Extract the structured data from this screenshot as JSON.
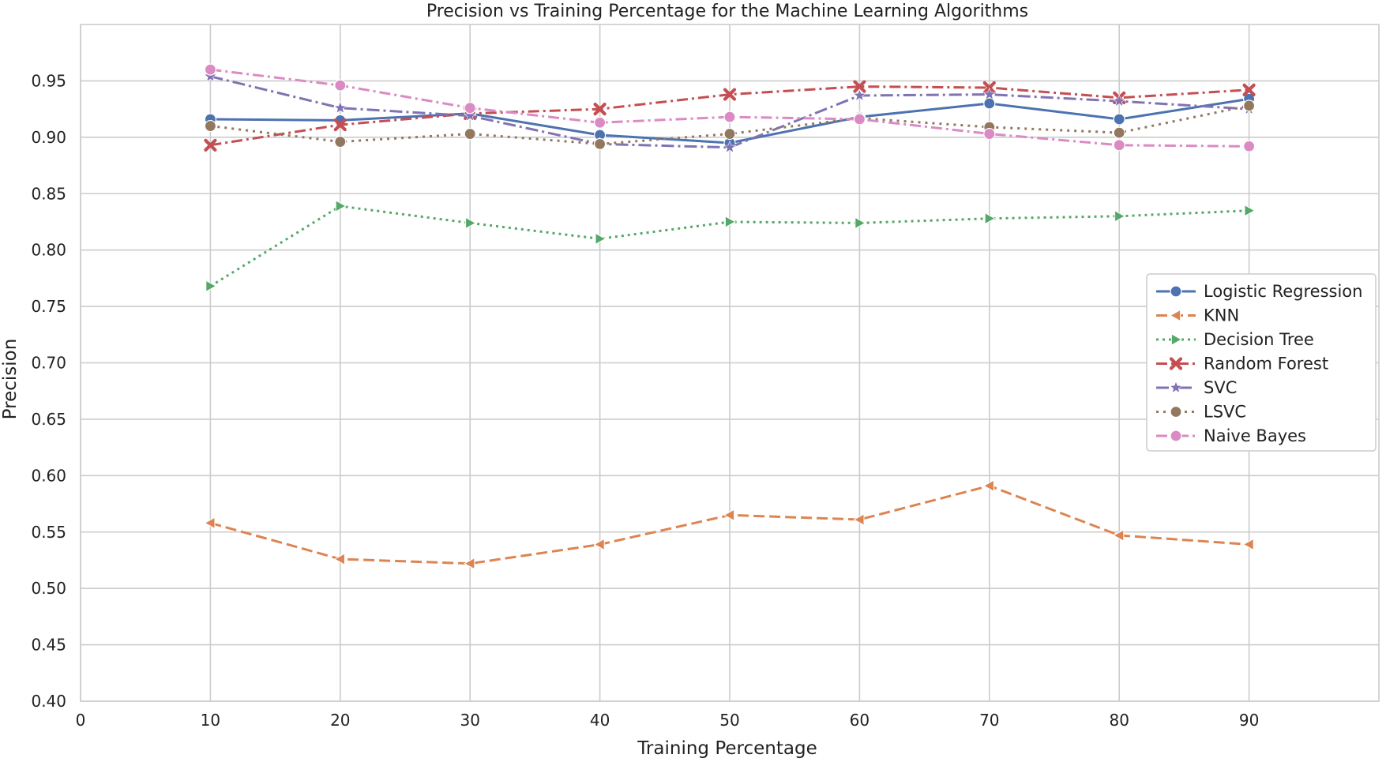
{
  "chart_data": {
    "type": "line",
    "title": "Precision vs Training Percentage for the Machine Learning Algorithms",
    "xlabel": "Training Percentage",
    "ylabel": "Precision",
    "x": [
      10,
      20,
      30,
      40,
      50,
      60,
      70,
      80,
      90
    ],
    "xlim": [
      0,
      100
    ],
    "ylim": [
      0.4,
      1.0
    ],
    "xticks": [
      "0",
      "10",
      "20",
      "30",
      "40",
      "50",
      "60",
      "70",
      "80",
      "90"
    ],
    "yticks": [
      "0.40",
      "0.45",
      "0.50",
      "0.55",
      "0.60",
      "0.65",
      "0.70",
      "0.75",
      "0.80",
      "0.85",
      "0.90",
      "0.95"
    ],
    "grid": true,
    "legend_position": "center-right",
    "series": [
      {
        "name": "Logistic Regression",
        "color": "#4c72b0",
        "dash": "solid",
        "marker": "circle",
        "values": [
          0.916,
          0.915,
          0.921,
          0.902,
          0.895,
          0.918,
          0.93,
          0.916,
          0.934
        ]
      },
      {
        "name": "KNN",
        "color": "#dd8452",
        "dash": "dashed",
        "marker": "triangle-left",
        "values": [
          0.558,
          0.526,
          0.522,
          0.539,
          0.565,
          0.561,
          0.591,
          0.547,
          0.539
        ]
      },
      {
        "name": "Decision Tree",
        "color": "#55a868",
        "dash": "dotted",
        "marker": "triangle-right",
        "values": [
          0.768,
          0.839,
          0.824,
          0.81,
          0.825,
          0.824,
          0.828,
          0.83,
          0.835
        ]
      },
      {
        "name": "Random Forest",
        "color": "#c44e52",
        "dash": "dashdot",
        "marker": "x",
        "values": [
          0.893,
          0.911,
          0.921,
          0.925,
          0.938,
          0.945,
          0.944,
          0.935,
          0.942
        ]
      },
      {
        "name": "SVC",
        "color": "#8172b3",
        "dash": "dashdot2",
        "marker": "star",
        "values": [
          0.954,
          0.926,
          0.919,
          0.894,
          0.891,
          0.937,
          0.938,
          0.932,
          0.925
        ]
      },
      {
        "name": "LSVC",
        "color": "#937860",
        "dash": "dotted2",
        "marker": "circle",
        "values": [
          0.91,
          0.896,
          0.903,
          0.894,
          0.903,
          0.917,
          0.909,
          0.904,
          0.928
        ]
      },
      {
        "name": "Naive Bayes",
        "color": "#da8bc3",
        "dash": "dashdot",
        "marker": "circle",
        "values": [
          0.96,
          0.946,
          0.926,
          0.913,
          0.918,
          0.916,
          0.903,
          0.893,
          0.892
        ]
      }
    ]
  }
}
